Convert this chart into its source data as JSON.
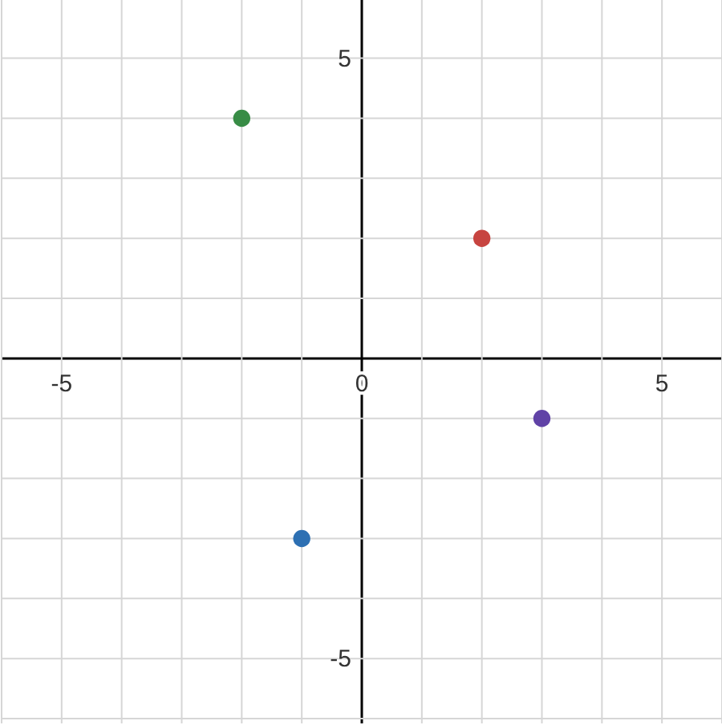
{
  "chart_data": {
    "type": "scatter",
    "x": [
      -2,
      2,
      3,
      -1
    ],
    "values": [
      4,
      2,
      -1,
      -3
    ],
    "colors": [
      "#388c46",
      "#c74440",
      "#6042a6",
      "#2d70b3"
    ],
    "marker": "circle",
    "xlim": [
      -6,
      6
    ],
    "ylim": [
      -6.08,
      5.97
    ],
    "xticks": [
      {
        "value": -6,
        "label": null
      },
      -5,
      {
        "value": -4,
        "label": null
      },
      {
        "value": -3,
        "label": null
      },
      {
        "value": -2,
        "label": null
      },
      {
        "value": -1,
        "label": null
      },
      0,
      {
        "value": 1,
        "label": null
      },
      {
        "value": 2,
        "label": null
      },
      {
        "value": 3,
        "label": null
      },
      {
        "value": 4,
        "label": null
      },
      5,
      {
        "value": 6,
        "label": null
      }
    ],
    "yticks": [
      {
        "value": -6,
        "label": null
      },
      -5,
      {
        "value": -4,
        "label": null
      },
      {
        "value": -3,
        "label": null
      },
      {
        "value": -2,
        "label": null
      },
      {
        "value": -1,
        "label": null
      },
      {
        "value": 0,
        "label": null
      },
      {
        "value": 1,
        "label": null
      },
      {
        "value": 2,
        "label": null
      },
      {
        "value": 3,
        "label": null
      },
      {
        "value": 4,
        "label": null
      },
      5
    ],
    "grid": true,
    "legend": false
  }
}
